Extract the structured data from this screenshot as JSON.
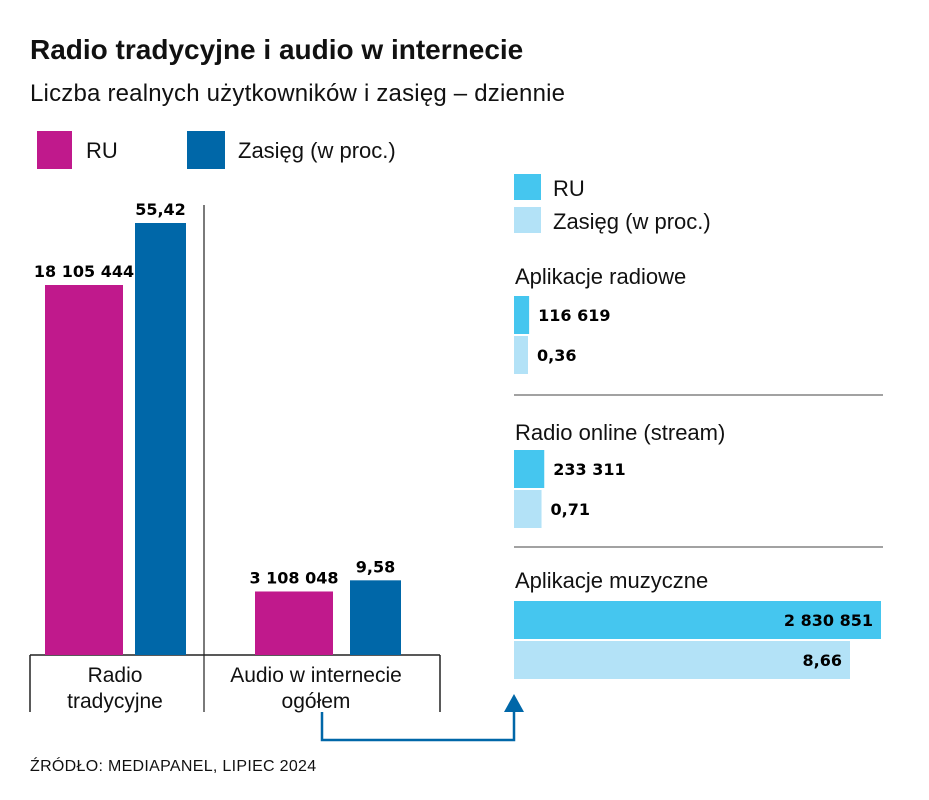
{
  "title": "Radio tradycyjne i audio w internecie",
  "subtitle": "Liczba realnych użytkowników i zasięg – dziennie",
  "legend_main": [
    {
      "label": "RU",
      "color": "#c0198c"
    },
    {
      "label": "Zasięg (w proc.)",
      "color": "#0067a8"
    }
  ],
  "legend_right": [
    {
      "label": "RU",
      "color": "#45c6ef"
    },
    {
      "label": "Zasięg (w proc.)",
      "color": "#b3e2f7"
    }
  ],
  "source": "ŹRÓDŁO: MEDIAPANEL, LIPIEC 2024",
  "chart_data": [
    {
      "type": "bar",
      "categories": [
        "Radio tradycyjne",
        "Audio w internecie ogółem"
      ],
      "series": [
        {
          "name": "RU",
          "values": [
            18105444,
            3108048
          ],
          "labels": [
            "18 105 444",
            "3 108 048"
          ],
          "color": "#c0198c"
        },
        {
          "name": "Zasięg (w proc.)",
          "values": [
            55.42,
            9.58
          ],
          "labels": [
            "55,42",
            "9,58"
          ],
          "color": "#0067a8"
        }
      ],
      "category_labels": [
        [
          "Radio",
          "tradycyjne"
        ],
        [
          "Audio w internecie",
          "ogółem"
        ]
      ]
    },
    {
      "type": "bar",
      "orientation": "horizontal",
      "categories": [
        "Aplikacje radiowe",
        "Radio online (stream)",
        "Aplikacje muzyczne"
      ],
      "series": [
        {
          "name": "RU",
          "values": [
            116619,
            233311,
            2830851
          ],
          "labels": [
            "116 619",
            "233 311",
            "2 830 851"
          ],
          "color": "#45c6ef"
        },
        {
          "name": "Zasięg (w proc.)",
          "values": [
            0.36,
            0.71,
            8.66
          ],
          "labels": [
            "0,36",
            "0,71",
            "8,66"
          ],
          "color": "#b3e2f7"
        }
      ]
    }
  ]
}
